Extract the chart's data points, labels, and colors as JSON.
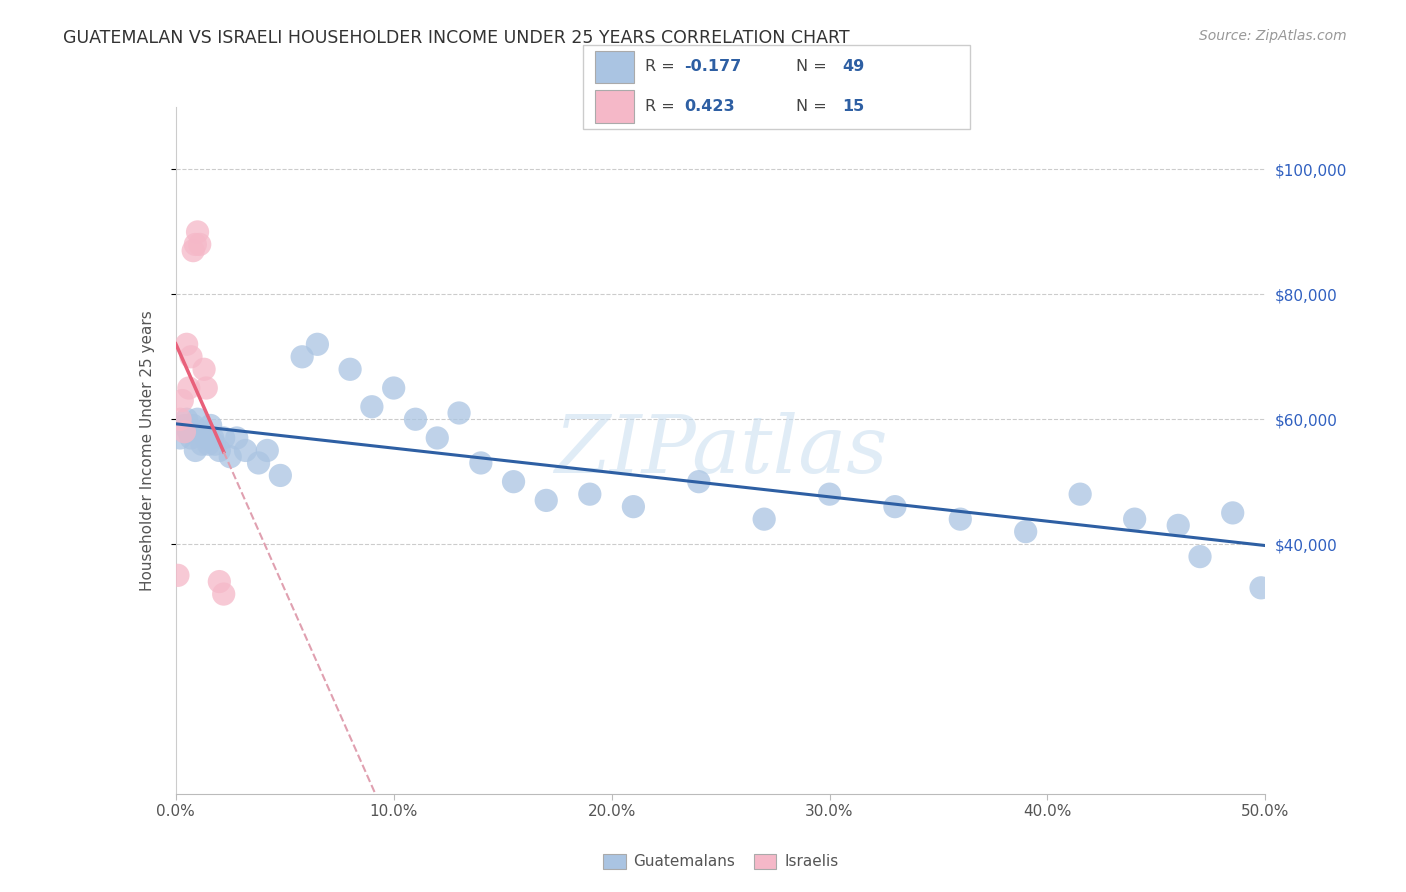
{
  "title": "GUATEMALAN VS ISRAELI HOUSEHOLDER INCOME UNDER 25 YEARS CORRELATION CHART",
  "source": "Source: ZipAtlas.com",
  "ylabel": "Householder Income Under 25 years",
  "xlim": [
    0.0,
    0.5
  ],
  "ylim": [
    0,
    110000
  ],
  "yticks": [
    40000,
    60000,
    80000,
    100000
  ],
  "xticks": [
    0.0,
    0.1,
    0.2,
    0.3,
    0.4,
    0.5
  ],
  "xtick_labels": [
    "0.0%",
    "10.0%",
    "20.0%",
    "30.0%",
    "40.0%",
    "50.0%"
  ],
  "ytick_labels": [
    "$40,000",
    "$60,000",
    "$80,000",
    "$100,000"
  ],
  "watermark": "ZIPatlas",
  "guatemalans_color": "#aac4e2",
  "israelis_color": "#f5b8c8",
  "trend_blue_color": "#2e5fa3",
  "trend_pink_solid_color": "#e8607a",
  "trend_pink_dashed_color": "#e0a0b0",
  "guatemalans_x": [
    0.002,
    0.004,
    0.005,
    0.006,
    0.007,
    0.008,
    0.009,
    0.01,
    0.011,
    0.012,
    0.013,
    0.014,
    0.015,
    0.016,
    0.017,
    0.018,
    0.02,
    0.022,
    0.025,
    0.028,
    0.032,
    0.038,
    0.042,
    0.048,
    0.058,
    0.065,
    0.08,
    0.09,
    0.1,
    0.11,
    0.12,
    0.13,
    0.14,
    0.155,
    0.17,
    0.19,
    0.21,
    0.24,
    0.27,
    0.3,
    0.33,
    0.36,
    0.39,
    0.415,
    0.44,
    0.46,
    0.47,
    0.485,
    0.498
  ],
  "guatemalans_y": [
    57000,
    59000,
    60000,
    58000,
    57000,
    59000,
    55000,
    60000,
    58000,
    56000,
    58000,
    57000,
    56000,
    59000,
    57000,
    56000,
    55000,
    57000,
    54000,
    57000,
    55000,
    53000,
    55000,
    51000,
    70000,
    72000,
    68000,
    62000,
    65000,
    60000,
    57000,
    61000,
    53000,
    50000,
    47000,
    48000,
    46000,
    50000,
    44000,
    48000,
    46000,
    44000,
    42000,
    48000,
    44000,
    43000,
    38000,
    45000,
    33000
  ],
  "israelis_x": [
    0.001,
    0.002,
    0.003,
    0.004,
    0.005,
    0.006,
    0.007,
    0.008,
    0.009,
    0.01,
    0.011,
    0.013,
    0.014,
    0.02,
    0.022
  ],
  "israelis_y": [
    35000,
    60000,
    63000,
    58000,
    72000,
    65000,
    70000,
    87000,
    88000,
    90000,
    88000,
    68000,
    65000,
    34000,
    32000
  ],
  "legend_R_blue": "R = -0.177",
  "legend_N_blue": "N = 49",
  "legend_R_pink": "R =  0.423",
  "legend_N_pink": "N = 15"
}
